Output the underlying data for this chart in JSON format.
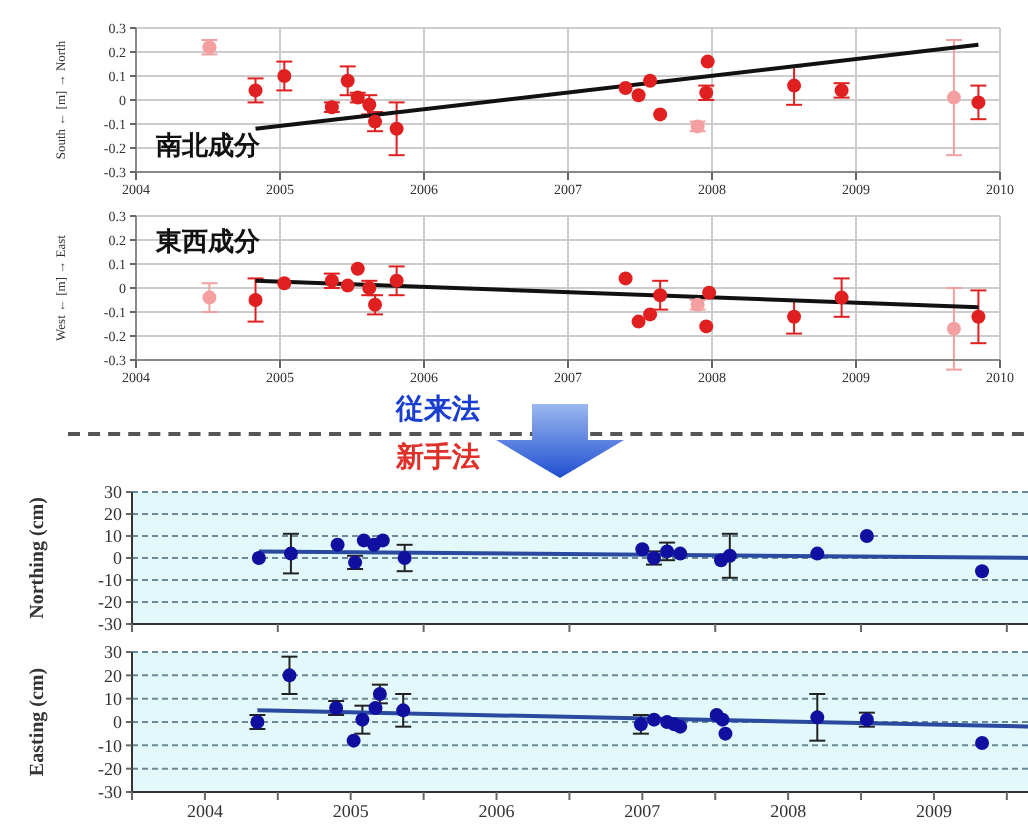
{
  "chart_data": [
    {
      "type": "scatter",
      "ylabel": "South ← [m] → North",
      "annotations": [
        "南北成分"
      ],
      "xlim": [
        2004,
        2010
      ],
      "xticks": [
        2004,
        2005,
        2006,
        2007,
        2008,
        2009,
        2010
      ],
      "ylim": [
        -0.3,
        0.3
      ],
      "yticks": [
        -0.3,
        -0.2,
        -0.1,
        0,
        0.1,
        0.2,
        0.3
      ],
      "grid": true,
      "marker": "circle",
      "series": [
        {
          "color": "#f4a0a0",
          "x": [
            2004.51,
            2007.9,
            2009.68
          ],
          "values": [
            0.22,
            -0.11,
            0.01
          ],
          "errors": [
            0.03,
            0.02,
            0.24
          ]
        },
        {
          "color": "#e02020",
          "x": [
            2004.83,
            2005.03,
            2005.36,
            2005.47,
            2005.54,
            2005.62,
            2005.66,
            2005.81,
            2007.4,
            2007.49,
            2007.57,
            2007.64,
            2007.96,
            2007.97,
            2008.57,
            2008.9,
            2009.85
          ],
          "values": [
            0.04,
            0.1,
            -0.03,
            0.08,
            0.01,
            -0.02,
            -0.09,
            -0.12,
            0.05,
            0.02,
            0.08,
            -0.06,
            0.03,
            0.16,
            0.06,
            0.04,
            -0.01
          ],
          "errors": [
            0.05,
            0.06,
            0.02,
            0.06,
            0.02,
            0.04,
            0.04,
            0.11,
            null,
            null,
            null,
            null,
            0.03,
            null,
            0.08,
            0.03,
            0.07
          ]
        },
        {
          "type": "line",
          "marker": "none",
          "color": "#111111",
          "x": [
            2004.83,
            2009.85
          ],
          "values": [
            -0.12,
            0.23
          ]
        }
      ]
    },
    {
      "type": "scatter",
      "ylabel": "West ← [m] → East",
      "annotations": [
        "東西成分"
      ],
      "xlim": [
        2004,
        2010
      ],
      "xticks": [
        2004,
        2005,
        2006,
        2007,
        2008,
        2009,
        2010
      ],
      "ylim": [
        -0.3,
        0.3
      ],
      "yticks": [
        -0.3,
        -0.2,
        -0.1,
        0,
        0.1,
        0.2,
        0.3
      ],
      "grid": true,
      "marker": "circle",
      "series": [
        {
          "color": "#f4a0a0",
          "x": [
            2004.51,
            2007.9,
            2009.68
          ],
          "values": [
            -0.04,
            -0.07,
            -0.17
          ],
          "errors": [
            0.06,
            0.02,
            0.17
          ]
        },
        {
          "color": "#e02020",
          "x": [
            2004.83,
            2005.03,
            2005.36,
            2005.47,
            2005.54,
            2005.62,
            2005.66,
            2005.81,
            2007.4,
            2007.49,
            2007.57,
            2007.64,
            2007.96,
            2007.98,
            2008.57,
            2008.9,
            2009.85
          ],
          "values": [
            -0.05,
            0.02,
            0.03,
            0.01,
            0.08,
            0,
            -0.07,
            0.03,
            0.04,
            -0.14,
            -0.11,
            -0.03,
            -0.16,
            -0.02,
            -0.12,
            -0.04,
            -0.12
          ],
          "errors": [
            0.09,
            null,
            0.03,
            null,
            null,
            0.03,
            0.04,
            0.06,
            null,
            null,
            null,
            0.06,
            null,
            null,
            0.07,
            0.08,
            0.11
          ]
        },
        {
          "type": "line",
          "marker": "none",
          "color": "#111111",
          "x": [
            2004.83,
            2009.85
          ],
          "values": [
            0.03,
            -0.08
          ]
        }
      ]
    },
    {
      "type": "other",
      "annotations": [
        "従来法",
        "新手法"
      ]
    },
    {
      "type": "scatter",
      "ylabel": "Northing (cm)",
      "tick_labels": "y",
      "xlim": [
        2004,
        2010.2
      ],
      "xticks": [
        {
          "value": 2004,
          "label": null
        },
        {
          "value": 2005,
          "label": null
        },
        {
          "value": 2006,
          "label": null
        },
        {
          "value": 2007,
          "label": null
        },
        {
          "value": 2008,
          "label": null
        },
        {
          "value": 2009,
          "label": null
        },
        {
          "value": 2010,
          "label": null
        }
      ],
      "ylim": [
        -30,
        30
      ],
      "yticks": [
        -30,
        -20,
        -10,
        0,
        10,
        20,
        30
      ],
      "grid": "y",
      "marker": "circle",
      "series": [
        {
          "color": "#1010a0",
          "x": [
            2004.87,
            2005.09,
            2005.41,
            2005.53,
            2005.59,
            2005.66,
            2005.72,
            2005.87,
            2007.5,
            2007.58,
            2007.67,
            2007.76,
            2008.04,
            2008.1,
            2008.7,
            2009.04,
            2009.83
          ],
          "values": [
            0,
            2,
            6,
            -2,
            8,
            6,
            8,
            0,
            4,
            0,
            3,
            2,
            -1,
            1,
            2,
            10,
            -6
          ],
          "errors": [
            null,
            9,
            null,
            3,
            null,
            null,
            null,
            6,
            null,
            3,
            4,
            null,
            null,
            10,
            null,
            null,
            null
          ]
        },
        {
          "type": "line",
          "marker": "none",
          "color": "#2a4aa0",
          "x": [
            2004.87,
            2010.2
          ],
          "values": [
            3,
            0
          ]
        }
      ]
    },
    {
      "type": "scatter",
      "ylabel": "Easting (cm)",
      "xlim": [
        2004,
        2010.2
      ],
      "xticks": [
        {
          "value": 2004,
          "label": null
        },
        {
          "value": 2004.5,
          "label": "2004"
        },
        {
          "value": 2005,
          "label": null
        },
        {
          "value": 2005.5,
          "label": "2005"
        },
        {
          "value": 2006,
          "label": null
        },
        {
          "value": 2006.5,
          "label": "2006"
        },
        {
          "value": 2007,
          "label": null
        },
        {
          "value": 2007.5,
          "label": "2007"
        },
        {
          "value": 2008,
          "label": null
        },
        {
          "value": 2008.5,
          "label": "2008"
        },
        {
          "value": 2009,
          "label": null
        },
        {
          "value": 2009.5,
          "label": "2009"
        },
        {
          "value": 2010,
          "label": null
        }
      ],
      "ylim": [
        -30,
        30
      ],
      "yticks": [
        -30,
        -20,
        -10,
        0,
        10,
        20,
        30
      ],
      "grid": "y",
      "marker": "circle",
      "series": [
        {
          "color": "#1010a0",
          "x": [
            2004.86,
            2005.08,
            2005.4,
            2005.52,
            2005.58,
            2005.67,
            2005.7,
            2005.86,
            2007.49,
            2007.58,
            2007.67,
            2007.72,
            2007.76,
            2008.01,
            2008.05,
            2008.07,
            2008.7,
            2009.04,
            2009.83
          ],
          "values": [
            0,
            20,
            6,
            -8,
            1,
            6,
            12,
            5,
            -1,
            1,
            0,
            -1,
            -2,
            3,
            1,
            -5,
            2,
            1,
            -9
          ],
          "errors": [
            3,
            8,
            3,
            null,
            6,
            null,
            4,
            7,
            4,
            null,
            null,
            null,
            null,
            null,
            null,
            null,
            10,
            3,
            null
          ]
        },
        {
          "type": "line",
          "marker": "none",
          "color": "#2a4aa0",
          "x": [
            2004.86,
            2010.2
          ],
          "values": [
            5,
            -2
          ]
        }
      ]
    }
  ]
}
